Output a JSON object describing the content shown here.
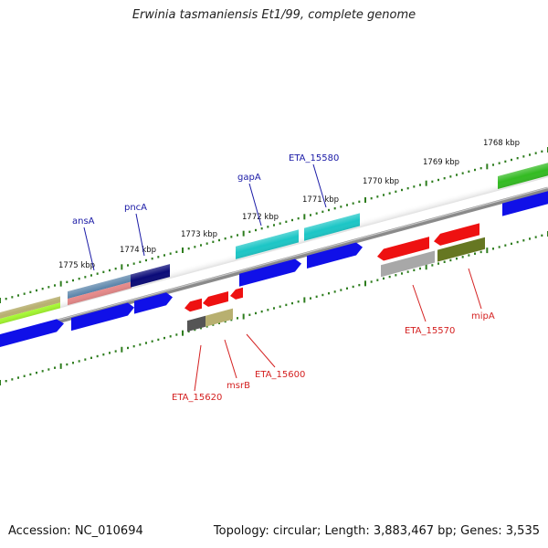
{
  "title": "Erwinia tasmaniensis Et1/99, complete genome",
  "footer": {
    "accession": "Accession: NC_010694",
    "summary": "Topology: circular; Length: 3,883,467 bp; Genes: 3,535"
  },
  "ruler_labels": [
    "1775 kbp",
    "1774 kbp",
    "1773 kbp",
    "1772 kbp",
    "1771 kbp",
    "1770 kbp",
    "1769 kbp",
    "1768 kbp"
  ],
  "gene_labels": {
    "forward": [
      "ansA",
      "pncA",
      "gapA",
      "ETA_15580"
    ],
    "reverse": [
      "ETA_15620",
      "msrB",
      "ETA_15600",
      "ETA_15570",
      "mipA"
    ]
  },
  "colors": {
    "forward_label": "#1a1aa6",
    "reverse_label": "#d42020",
    "backbone": "#8a8a8a",
    "tick": "#2e7d1e",
    "cds_blue": "#1010e8",
    "feature_red": "#ee1111",
    "teal": "#1cc6c6",
    "navy": "#0a0a78",
    "green": "#33bb22",
    "olive": "#667722",
    "khaki": "#b8b070",
    "grey": "#a8a8a8",
    "dark_grey": "#555555",
    "steel": "#5a84aa",
    "salmon": "#e88a8a",
    "lime": "#aaff33"
  }
}
